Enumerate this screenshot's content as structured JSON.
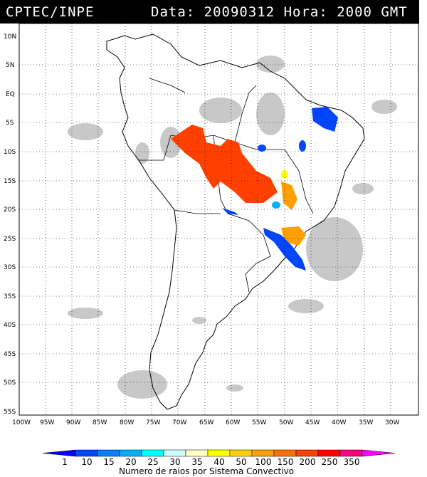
{
  "header": {
    "source": "CPTEC/INPE",
    "datetime": "Data: 20090312 Hora: 2000 GMT"
  },
  "map": {
    "lat_labels": [
      "10N",
      "5N",
      "EQ",
      "5S",
      "10S",
      "15S",
      "20S",
      "25S",
      "30S",
      "35S",
      "40S",
      "45S",
      "50S",
      "55S"
    ],
    "lon_labels": [
      "100W",
      "95W",
      "90W",
      "85W",
      "80W",
      "75W",
      "70W",
      "65W",
      "60W",
      "55W",
      "50W",
      "45W",
      "40W",
      "35W",
      "30W"
    ]
  },
  "legend": {
    "title": "Numero de raios por Sistema Convectivo",
    "labels": [
      "1",
      "10",
      "15",
      "20",
      "25",
      "30",
      "35",
      "40",
      "50",
      "100",
      "150",
      "200",
      "250",
      "350"
    ],
    "colors": [
      "#0000ff",
      "#0046ff",
      "#0080ff",
      "#00b0ff",
      "#00ffff",
      "#c8ffff",
      "#ffffc0",
      "#ffff00",
      "#ffd000",
      "#ffa000",
      "#ff7000",
      "#ff4000",
      "#ff0000",
      "#ff0080",
      "#ff00ff"
    ]
  }
}
